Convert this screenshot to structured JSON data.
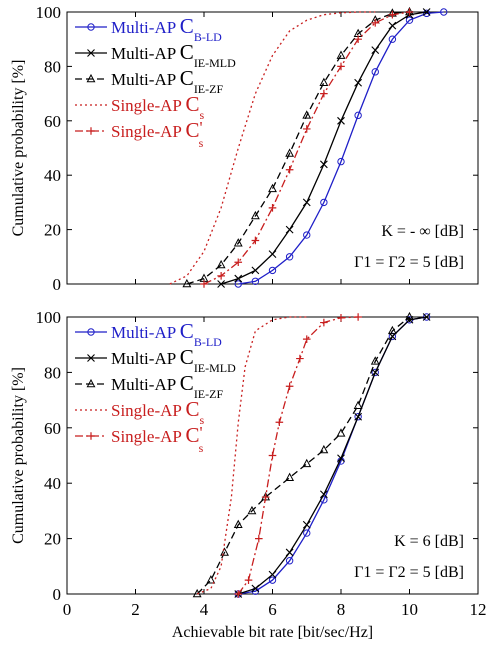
{
  "chart_data": [
    {
      "type": "line",
      "xlabel": "",
      "ylabel": "Cumulative probability [%]",
      "xlim": [
        0,
        12
      ],
      "ylim": [
        0,
        100
      ],
      "xticks": [],
      "yticks": [
        0,
        20,
        40,
        60,
        80,
        100
      ],
      "grid": false,
      "legend_position": "top-left",
      "annotations": [
        {
          "lines": [
            "K = - ∞ [dB]"
          ]
        },
        {
          "lines": [
            "Γ1 = Γ2 = 5 [dB]"
          ]
        }
      ],
      "series": [
        {
          "name": "Multi-AP C_B-LD",
          "label_main": "Multi-AP ",
          "label_c": "C",
          "label_sub": "B-LD",
          "label_prime": "",
          "color": "#1f1fc8",
          "dash": "solid",
          "marker": "circle",
          "x": [
            5.0,
            5.5,
            6.0,
            6.5,
            7.0,
            7.5,
            8.0,
            8.5,
            9.0,
            9.5,
            10.0,
            10.5,
            11.0
          ],
          "y": [
            0,
            1,
            5,
            10,
            18,
            30,
            45,
            62,
            78,
            90,
            97,
            99.5,
            100
          ]
        },
        {
          "name": "Multi-AP C_IE-MLD",
          "label_main": "Multi-AP ",
          "label_c": "C",
          "label_sub": "IE-MLD",
          "label_prime": "",
          "color": "#000000",
          "dash": "solid",
          "marker": "x",
          "x": [
            4.5,
            5.0,
            5.5,
            6.0,
            6.5,
            7.0,
            7.5,
            8.0,
            8.5,
            9.0,
            9.5,
            10.0,
            10.5
          ],
          "y": [
            0,
            2,
            5,
            11,
            20,
            30,
            44,
            60,
            74,
            86,
            95,
            99,
            100
          ]
        },
        {
          "name": "Multi-AP C_IE-ZF",
          "label_main": "Multi-AP ",
          "label_c": "C",
          "label_sub": "IE-ZF",
          "label_prime": "",
          "color": "#000000",
          "dash": "dashed",
          "marker": "triangle",
          "x": [
            3.5,
            4.0,
            4.5,
            5.0,
            5.5,
            6.0,
            6.5,
            7.0,
            7.5,
            8.0,
            8.5,
            9.0,
            9.5,
            10.0
          ],
          "y": [
            0,
            2,
            7,
            15,
            25,
            35,
            48,
            62,
            74,
            84,
            92,
            97,
            99.5,
            100
          ]
        },
        {
          "name": "Single-AP C_s",
          "label_main": "Single-AP ",
          "label_c": "C",
          "label_sub": "s",
          "label_prime": "",
          "color": "#c81e1e",
          "dash": "dotted",
          "marker": "none",
          "x": [
            3.0,
            3.5,
            4.0,
            4.5,
            5.0,
            5.5,
            6.0,
            6.5,
            7.0,
            7.5,
            8.0,
            8.5,
            9.0
          ],
          "y": [
            0,
            3,
            12,
            28,
            50,
            70,
            84,
            93,
            97,
            99,
            99.7,
            100,
            100
          ]
        },
        {
          "name": "Single-AP C'_s",
          "label_main": "Single-AP ",
          "label_c": "C",
          "label_sub": "s",
          "label_prime": "'",
          "color": "#c81e1e",
          "dash": "dashdot",
          "marker": "plus",
          "x": [
            4.0,
            4.5,
            5.0,
            5.5,
            6.0,
            6.5,
            7.0,
            7.5,
            8.0,
            8.5,
            9.0,
            9.5,
            10.0
          ],
          "y": [
            0,
            3,
            8,
            16,
            28,
            42,
            57,
            70,
            80,
            90,
            96,
            99,
            100
          ]
        }
      ]
    },
    {
      "type": "line",
      "xlabel": "Achievable bit rate [bit/sec/Hz]",
      "ylabel": "Cumulative probability [%]",
      "xlim": [
        0,
        12
      ],
      "ylim": [
        0,
        100
      ],
      "xticks": [
        0,
        2,
        4,
        6,
        8,
        10,
        12
      ],
      "yticks": [
        0,
        20,
        40,
        60,
        80,
        100
      ],
      "grid": false,
      "legend_position": "top-left",
      "annotations": [
        {
          "lines": [
            "K = 6 [dB]"
          ]
        },
        {
          "lines": [
            "Γ1 = Γ2 = 5 [dB]"
          ]
        }
      ],
      "series": [
        {
          "name": "Multi-AP C_B-LD",
          "label_main": "Multi-AP ",
          "label_c": "C",
          "label_sub": "B-LD",
          "label_prime": "",
          "color": "#1f1fc8",
          "dash": "solid",
          "marker": "circle",
          "x": [
            5.0,
            5.5,
            6.0,
            6.5,
            7.0,
            7.5,
            8.0,
            8.5,
            9.0,
            9.5,
            10.0,
            10.5
          ],
          "y": [
            0,
            1,
            5,
            12,
            22,
            34,
            48,
            64,
            80,
            93,
            99,
            100
          ]
        },
        {
          "name": "Multi-AP C_IE-MLD",
          "label_main": "Multi-AP ",
          "label_c": "C",
          "label_sub": "IE-MLD",
          "label_prime": "",
          "color": "#000000",
          "dash": "solid",
          "marker": "x",
          "x": [
            5.0,
            5.5,
            6.0,
            6.5,
            7.0,
            7.5,
            8.0,
            8.5,
            9.0,
            9.5,
            10.0,
            10.5
          ],
          "y": [
            0,
            2,
            7,
            15,
            25,
            36,
            49,
            64,
            80,
            93,
            99,
            100
          ]
        },
        {
          "name": "Multi-AP C_IE-ZF",
          "label_main": "Multi-AP ",
          "label_c": "C",
          "label_sub": "IE-ZF",
          "label_prime": "",
          "color": "#000000",
          "dash": "dashed",
          "marker": "triangle",
          "x": [
            3.8,
            4.2,
            4.6,
            5.0,
            5.4,
            5.8,
            6.5,
            7.0,
            7.5,
            8.0,
            8.5,
            9.0,
            9.5,
            10.0
          ],
          "y": [
            0,
            5,
            15,
            25,
            30,
            35,
            42,
            47,
            52,
            58,
            68,
            84,
            95,
            100
          ]
        },
        {
          "name": "Single-AP C_s",
          "label_main": "Single-AP ",
          "label_c": "C",
          "label_sub": "s",
          "label_prime": "",
          "color": "#c81e1e",
          "dash": "dotted",
          "marker": "none",
          "x": [
            3.8,
            4.2,
            4.5,
            4.8,
            5.0,
            5.2,
            5.5,
            6.0,
            6.5,
            7.0
          ],
          "y": [
            0,
            2,
            10,
            35,
            62,
            82,
            95,
            99,
            100,
            100
          ]
        },
        {
          "name": "Single-AP C'_s",
          "label_main": "Single-AP ",
          "label_c": "C",
          "label_sub": "s",
          "label_prime": "'",
          "color": "#c81e1e",
          "dash": "dashdot",
          "marker": "plus",
          "x": [
            5.0,
            5.3,
            5.6,
            5.8,
            6.0,
            6.2,
            6.5,
            6.8,
            7.0,
            7.5,
            8.0,
            8.5
          ],
          "y": [
            0,
            5,
            20,
            35,
            50,
            62,
            75,
            85,
            92,
            98,
            99.7,
            100
          ]
        }
      ]
    }
  ]
}
